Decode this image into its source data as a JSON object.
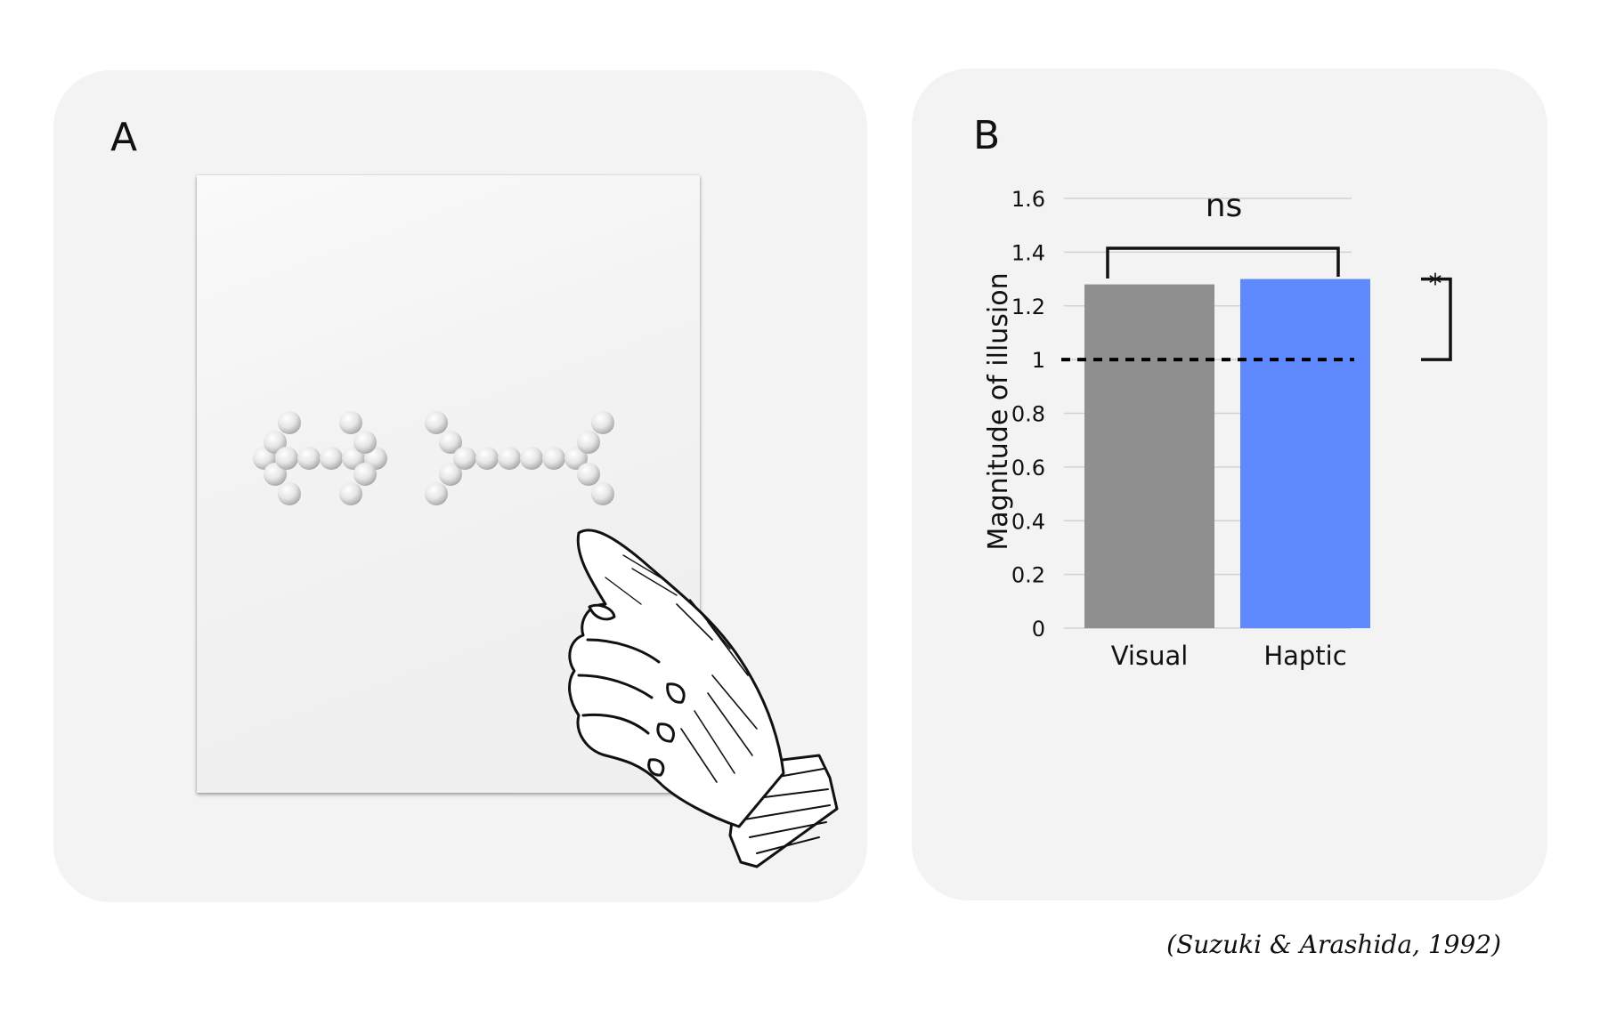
{
  "panel_a": {
    "label": "A",
    "icons": [
      "embossed-dot-arrow-icon",
      "pointing-hand-icon"
    ]
  },
  "panel_b": {
    "label": "B"
  },
  "chart_data": {
    "type": "bar",
    "categories": [
      "Visual",
      "Haptic"
    ],
    "values": [
      1.28,
      1.3
    ],
    "ylabel": "Magnitude of illusion",
    "xlabel": "",
    "ylim": [
      0,
      1.6
    ],
    "yticks": [
      0,
      0.2,
      0.4,
      0.6,
      0.8,
      1,
      1.2,
      1.4,
      1.6
    ],
    "ytick_labels": [
      "0",
      "0.2",
      "0.4",
      "0.6",
      "0.8",
      "1",
      "1.2",
      "1.4",
      "1.6"
    ],
    "reference_line": 1,
    "grid": true,
    "colors": [
      "#8f8f8f",
      "#5f8afe"
    ],
    "annotations": [
      {
        "text": "ns",
        "between": [
          "Visual",
          "Haptic"
        ]
      },
      {
        "text": "*",
        "between": [
          1,
          1.3
        ]
      }
    ]
  },
  "citation": "(Suzuki & Arashida, 1992)"
}
